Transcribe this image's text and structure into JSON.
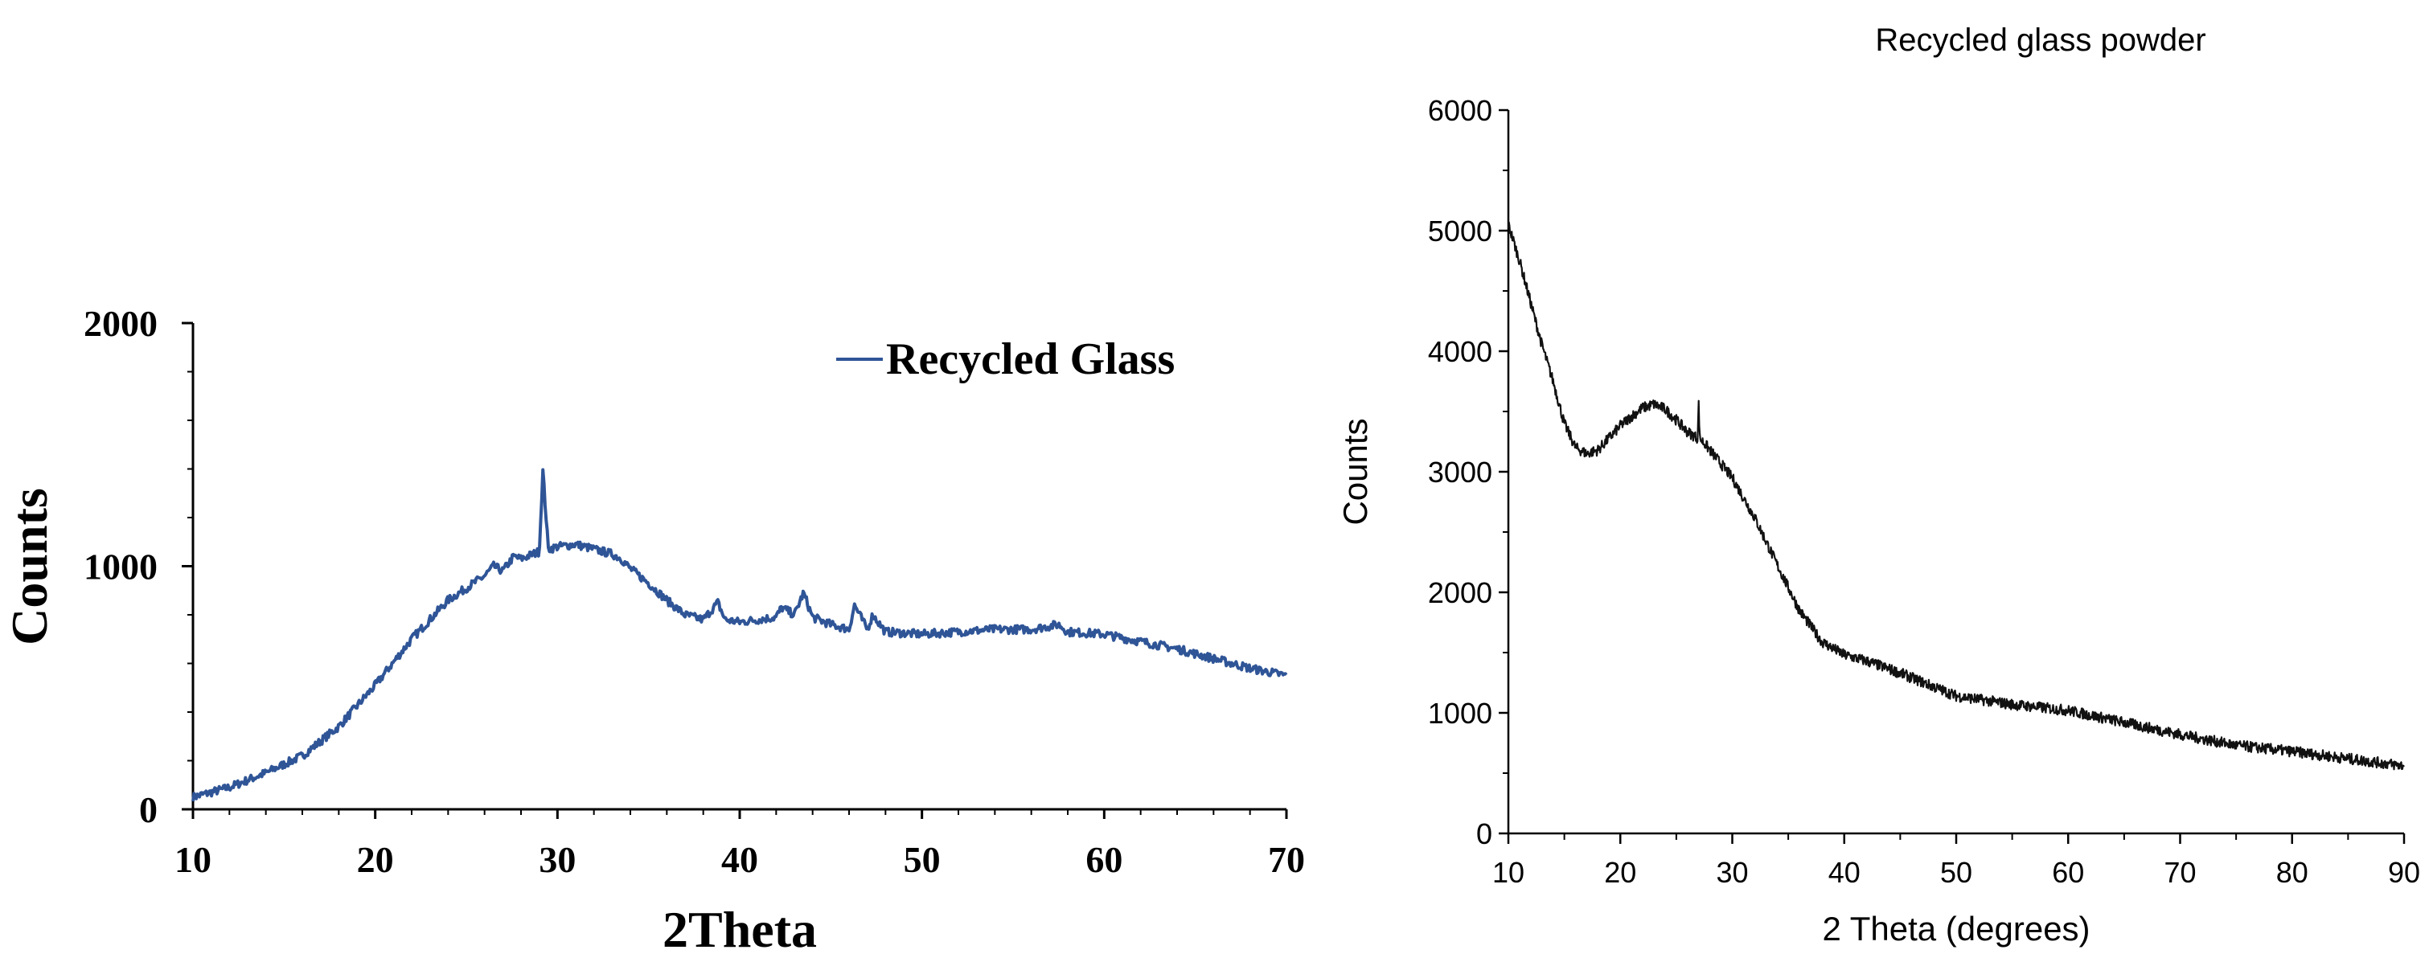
{
  "chart_data": [
    {
      "type": "line",
      "title": "",
      "xlabel": "2Theta",
      "ylabel": "Counts",
      "xlim": [
        10,
        70
      ],
      "ylim": [
        0,
        2000
      ],
      "xticks": [
        10,
        20,
        30,
        40,
        50,
        60,
        70
      ],
      "yticks": [
        0,
        1000,
        2000
      ],
      "xtick_labels": [
        "10",
        "20",
        "30",
        "40",
        "50",
        "60",
        "70"
      ],
      "ytick_labels": [
        "0",
        "1000",
        "2000"
      ],
      "legend": {
        "position": "top-right",
        "entries": [
          "Recycled Glass"
        ]
      },
      "line_color": "#2f5597",
      "series": [
        {
          "name": "Recycled Glass",
          "x": [
            10,
            12,
            14,
            16,
            18,
            20,
            22,
            24,
            26,
            26.5,
            27,
            27.6,
            28,
            29,
            29.2,
            29.5,
            30,
            31,
            32,
            33,
            33.5,
            34,
            35,
            36,
            37,
            38,
            38.8,
            39.2,
            40,
            41,
            42,
            42.3,
            43,
            43.5,
            44,
            45,
            46,
            46.3,
            47,
            47.3,
            48,
            50,
            52,
            54,
            56,
            57.5,
            58,
            60,
            62,
            64,
            66,
            68,
            70
          ],
          "y": [
            50,
            90,
            150,
            220,
            340,
            510,
            700,
            860,
            960,
            1000,
            980,
            1040,
            1030,
            1060,
            1390,
            1070,
            1080,
            1090,
            1070,
            1050,
            1030,
            990,
            930,
            860,
            800,
            780,
            850,
            780,
            770,
            780,
            790,
            830,
            800,
            890,
            790,
            760,
            740,
            840,
            740,
            800,
            730,
            720,
            730,
            740,
            740,
            760,
            730,
            720,
            690,
            660,
            620,
            580,
            550
          ]
        }
      ]
    },
    {
      "type": "line",
      "title": "Recycled glass powder",
      "xlabel": "2 Theta (degrees)",
      "ylabel": "Counts",
      "xlim": [
        10,
        90
      ],
      "ylim": [
        0,
        6000
      ],
      "xticks": [
        10,
        20,
        30,
        40,
        50,
        60,
        70,
        80,
        90
      ],
      "yticks": [
        0,
        1000,
        2000,
        3000,
        4000,
        5000,
        6000
      ],
      "xtick_labels": [
        "10",
        "20",
        "30",
        "40",
        "50",
        "60",
        "70",
        "80",
        "90"
      ],
      "ytick_labels": [
        "0",
        "1000",
        "2000",
        "3000",
        "4000",
        "5000",
        "6000"
      ],
      "line_color": "#111111",
      "series": [
        {
          "name": "Recycled glass powder",
          "x": [
            10,
            11,
            12,
            13,
            14,
            15,
            16,
            17,
            18,
            19,
            20,
            21,
            22,
            23,
            24,
            25,
            26,
            26.9,
            27,
            27.1,
            28,
            30,
            32,
            34,
            36,
            38,
            40,
            42,
            45,
            50,
            55,
            60,
            65,
            70,
            75,
            80,
            85,
            90
          ],
          "y": [
            5050,
            4750,
            4400,
            4050,
            3750,
            3400,
            3200,
            3150,
            3180,
            3280,
            3380,
            3460,
            3530,
            3560,
            3520,
            3430,
            3330,
            3280,
            3560,
            3280,
            3180,
            2950,
            2620,
            2230,
            1850,
            1590,
            1480,
            1430,
            1330,
            1140,
            1070,
            1020,
            920,
            820,
            730,
            680,
            620,
            560
          ]
        }
      ]
    }
  ]
}
